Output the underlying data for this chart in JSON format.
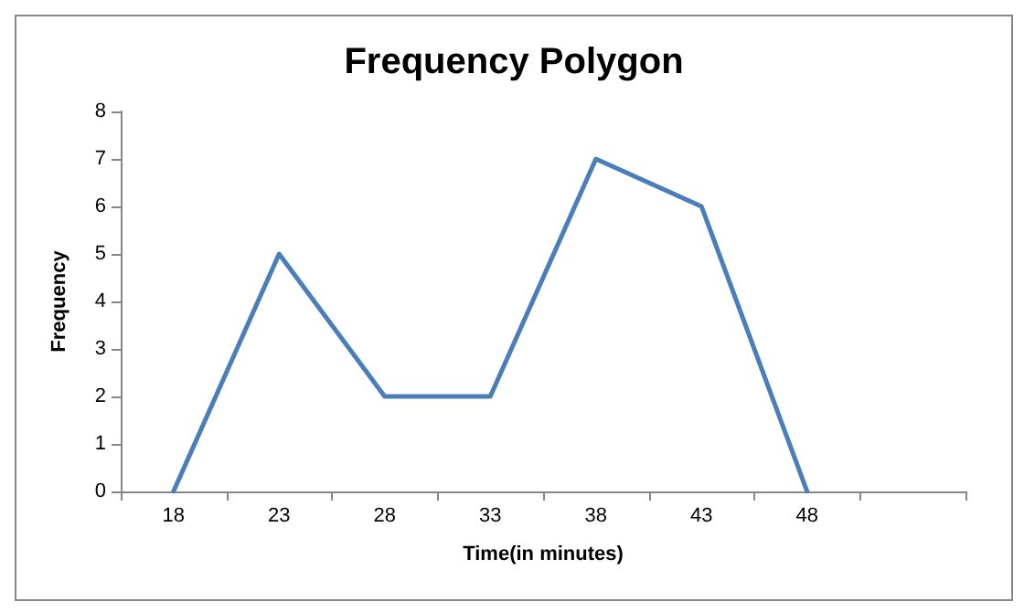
{
  "chart_data": {
    "type": "line",
    "title": "Frequency Polygon",
    "xlabel": "Time(in minutes)",
    "ylabel": "Frequency",
    "categories": [
      "18",
      "23",
      "28",
      "33",
      "38",
      "43",
      "48",
      null
    ],
    "series": [
      {
        "color": "#4a7ebb",
        "values": [
          0,
          5,
          2,
          2,
          7,
          6,
          0,
          null
        ]
      }
    ],
    "ylim": [
      0,
      8
    ],
    "yticks": [
      0,
      1,
      2,
      3,
      4,
      5,
      6,
      7,
      8
    ],
    "grid": false,
    "marker": "none",
    "line_style": "solid"
  }
}
